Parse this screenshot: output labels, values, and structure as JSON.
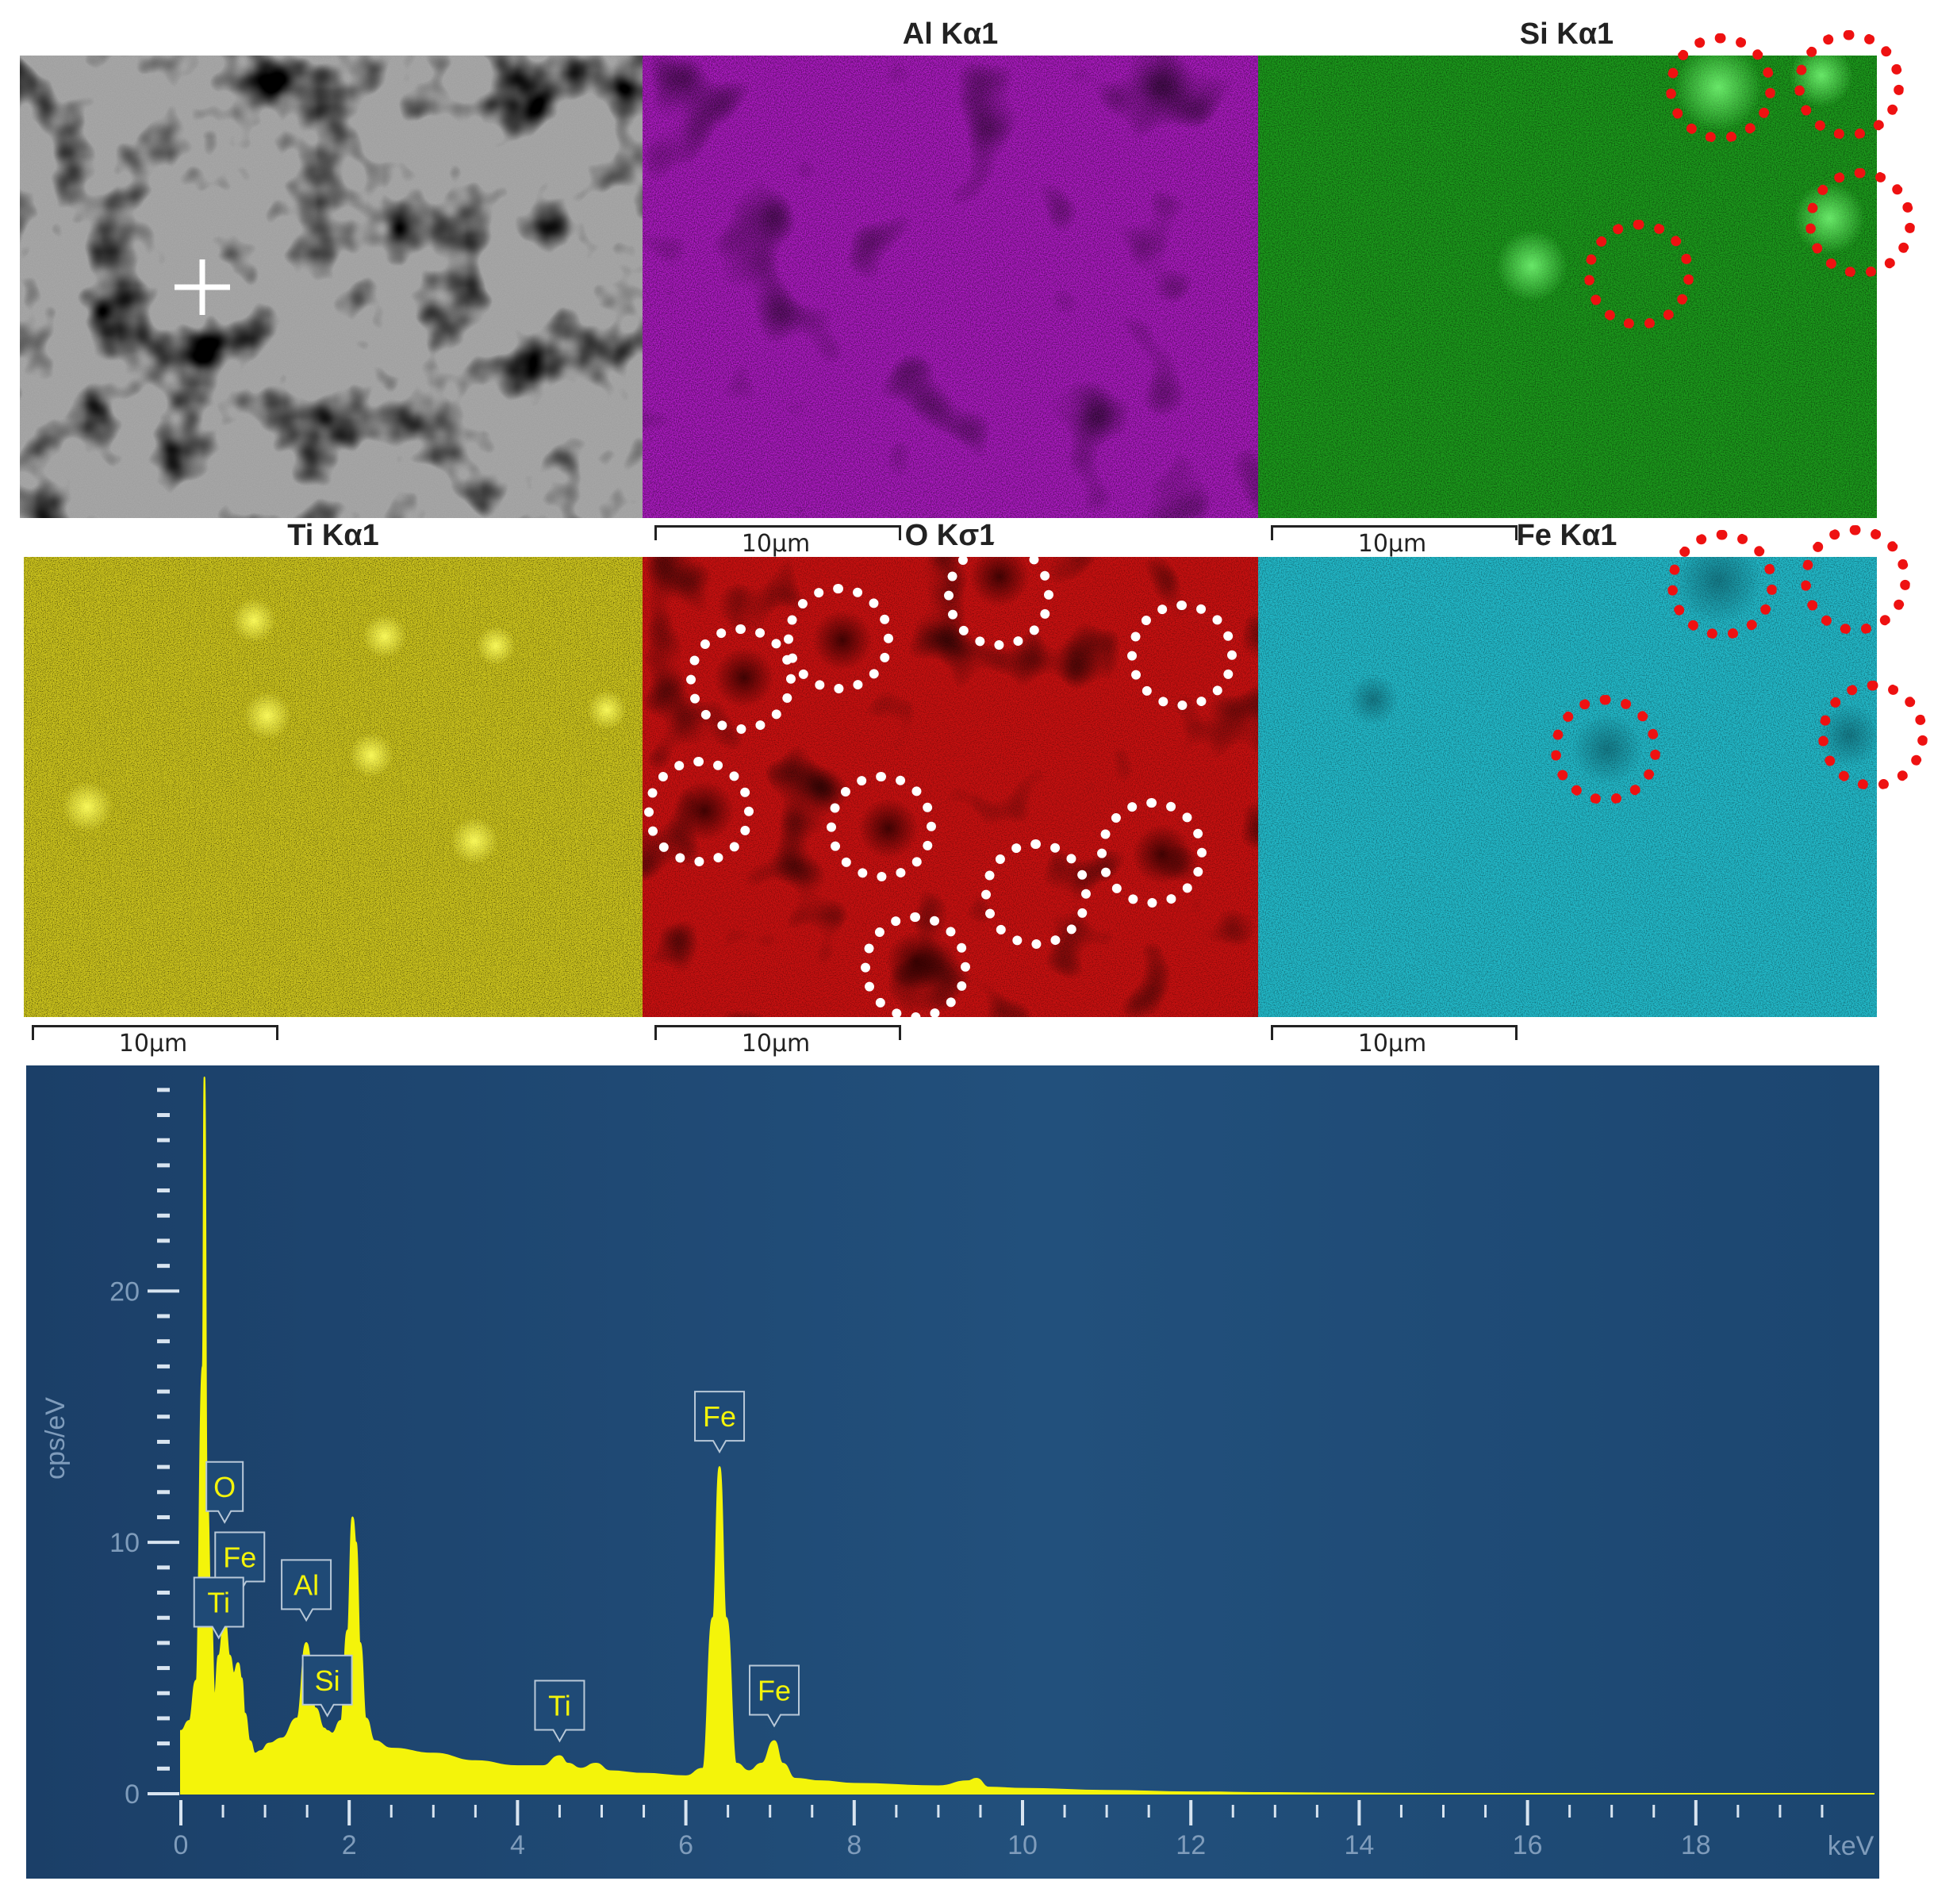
{
  "maps": {
    "al": {
      "title": "Al Kα1"
    },
    "si": {
      "title": "Si Kα1"
    },
    "ti": {
      "title": "Ti Kα1"
    },
    "o": {
      "title": "O Kσ1"
    },
    "fe": {
      "title": "Fe Kα1"
    }
  },
  "scalebars": [
    "10μm",
    "10μm",
    "10μm",
    "10μm",
    "10μm"
  ],
  "colors": {
    "al": "#b21cc8",
    "si": "#1c9c1c",
    "ti": "#c8c01c",
    "o": "#c81010",
    "fe": "#22b8c8",
    "spectrum_bg": "#1c4670",
    "spectrum_fill": "#f4f40a",
    "marker_red": "#ee1111",
    "marker_white": "#ffffff"
  },
  "chart_data": {
    "type": "area",
    "xlabel": "keV",
    "ylabel": "cps/eV",
    "xlim": [
      0,
      20
    ],
    "ylim": [
      0,
      28.5
    ],
    "xticks": [
      0,
      2,
      4,
      6,
      8,
      10,
      12,
      14,
      16,
      18
    ],
    "yticks": [
      0,
      10,
      20
    ],
    "series": [
      {
        "x": [
          0.0,
          0.1,
          0.18,
          0.26,
          0.28,
          0.31,
          0.36,
          0.4,
          0.45,
          0.52,
          0.58,
          0.63,
          0.68,
          0.72,
          0.76,
          0.82,
          0.88,
          0.95,
          1.05,
          1.2,
          1.38,
          1.49,
          1.6,
          1.7,
          1.74,
          1.8,
          1.9,
          1.98,
          2.04,
          2.08,
          2.13,
          2.2,
          2.3,
          2.5,
          3.0,
          3.5,
          4.0,
          4.3,
          4.5,
          4.6,
          4.75,
          4.93,
          5.1,
          5.5,
          6.0,
          6.2,
          6.32,
          6.4,
          6.48,
          6.6,
          6.75,
          6.9,
          7.05,
          7.15,
          7.3,
          7.6,
          8.0,
          9.0,
          9.35,
          9.45,
          9.6,
          10.0,
          11.0,
          12.0,
          13.0,
          14.0,
          15.0,
          16.0,
          18.0,
          20.0
        ],
        "y": [
          2.5,
          2.9,
          4.5,
          17,
          28.5,
          12,
          7,
          3.9,
          5.5,
          7,
          5.5,
          4.8,
          5.2,
          4.6,
          3.2,
          2.1,
          1.6,
          1.7,
          2.0,
          2.2,
          3.0,
          6.0,
          3.4,
          2.6,
          2.5,
          2.4,
          2.9,
          6.5,
          11.0,
          10.0,
          6.0,
          3.0,
          2.1,
          1.8,
          1.6,
          1.3,
          1.1,
          1.1,
          1.5,
          1.2,
          1.0,
          1.2,
          0.9,
          0.8,
          0.7,
          1.0,
          7.0,
          13.0,
          7.0,
          1.2,
          0.9,
          1.2,
          2.1,
          1.2,
          0.6,
          0.5,
          0.4,
          0.3,
          0.5,
          0.6,
          0.25,
          0.2,
          0.12,
          0.06,
          0.03,
          0.01,
          0.0,
          0.0,
          0.0,
          0.0
        ]
      }
    ],
    "peak_labels": [
      {
        "label": "O",
        "x": 0.52,
        "y": 10.8
      },
      {
        "label": "Fe",
        "x": 0.7,
        "y": 8.0
      },
      {
        "label": "Ti",
        "x": 0.45,
        "y": 6.2
      },
      {
        "label": "Al",
        "x": 1.49,
        "y": 6.9
      },
      {
        "label": "Si",
        "x": 1.74,
        "y": 3.1
      },
      {
        "label": "Ti",
        "x": 4.5,
        "y": 2.1
      },
      {
        "label": "Fe",
        "x": 6.4,
        "y": 13.6
      },
      {
        "label": "Fe",
        "x": 7.05,
        "y": 2.7
      }
    ]
  }
}
